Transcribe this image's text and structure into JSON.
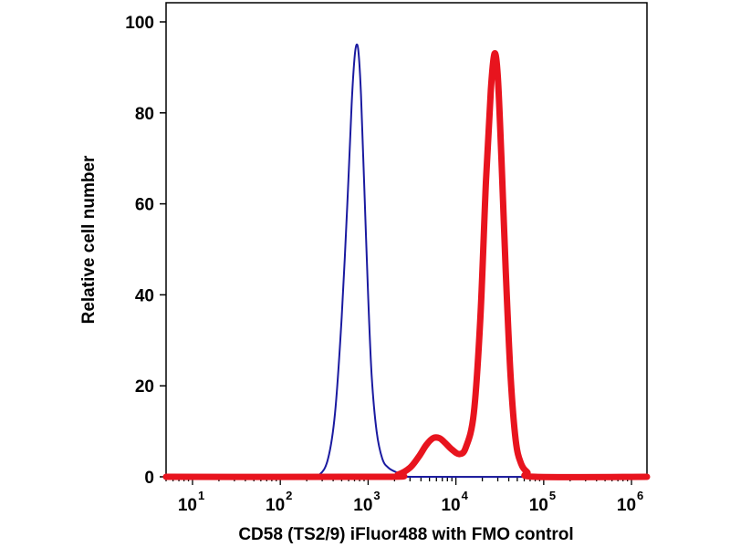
{
  "chart_data": {
    "type": "line",
    "title": "",
    "xlabel": "CD58 (TS2/9) iFluor488 with FMO control",
    "ylabel": "Relative cell number",
    "x_scale": "log",
    "xlim": [
      5,
      1500000
    ],
    "ylim": [
      0,
      100
    ],
    "x_ticks": [
      {
        "base": "10",
        "exp": "1",
        "value": 10
      },
      {
        "base": "10",
        "exp": "2",
        "value": 100
      },
      {
        "base": "10",
        "exp": "3",
        "value": 1000
      },
      {
        "base": "10",
        "exp": "4",
        "value": 10000
      },
      {
        "base": "10",
        "exp": "5",
        "value": 100000
      },
      {
        "base": "10",
        "exp": "6",
        "value": 1000000
      }
    ],
    "y_ticks": [
      {
        "label": "0",
        "value": 0
      },
      {
        "label": "20",
        "value": 20
      },
      {
        "label": "40",
        "value": 40
      },
      {
        "label": "60",
        "value": 60
      },
      {
        "label": "80",
        "value": 80
      },
      {
        "label": "100",
        "value": 100
      }
    ],
    "grid": false,
    "legend": "none",
    "series": [
      {
        "color": "#1a1aa0",
        "points": [
          [
            5,
            0
          ],
          [
            200,
            0
          ],
          [
            280,
            0.5
          ],
          [
            350,
            4
          ],
          [
            420,
            14
          ],
          [
            500,
            35
          ],
          [
            580,
            60
          ],
          [
            650,
            82
          ],
          [
            700,
            92
          ],
          [
            740,
            95
          ],
          [
            780,
            93
          ],
          [
            830,
            84
          ],
          [
            900,
            65
          ],
          [
            1000,
            40
          ],
          [
            1100,
            22
          ],
          [
            1250,
            10
          ],
          [
            1450,
            4
          ],
          [
            1700,
            2
          ],
          [
            2100,
            1
          ],
          [
            2600,
            0.5
          ],
          [
            3200,
            0
          ],
          [
            1500000,
            0
          ]
        ]
      },
      {
        "color": "#e8141e",
        "points": [
          [
            5,
            0
          ],
          [
            1500,
            0
          ],
          [
            2200,
            0.5
          ],
          [
            3000,
            2
          ],
          [
            3800,
            4.5
          ],
          [
            4600,
            7
          ],
          [
            5500,
            8.5
          ],
          [
            6500,
            8.5
          ],
          [
            7500,
            7.5
          ],
          [
            9000,
            6
          ],
          [
            11000,
            5
          ],
          [
            13000,
            6.5
          ],
          [
            16000,
            14
          ],
          [
            19000,
            35
          ],
          [
            22000,
            65
          ],
          [
            25000,
            85
          ],
          [
            27500,
            93
          ],
          [
            30000,
            88
          ],
          [
            33000,
            70
          ],
          [
            37000,
            45
          ],
          [
            42000,
            22
          ],
          [
            48000,
            8
          ],
          [
            55000,
            3
          ],
          [
            65000,
            1
          ],
          [
            80000,
            0
          ],
          [
            1500000,
            0
          ]
        ]
      }
    ]
  }
}
